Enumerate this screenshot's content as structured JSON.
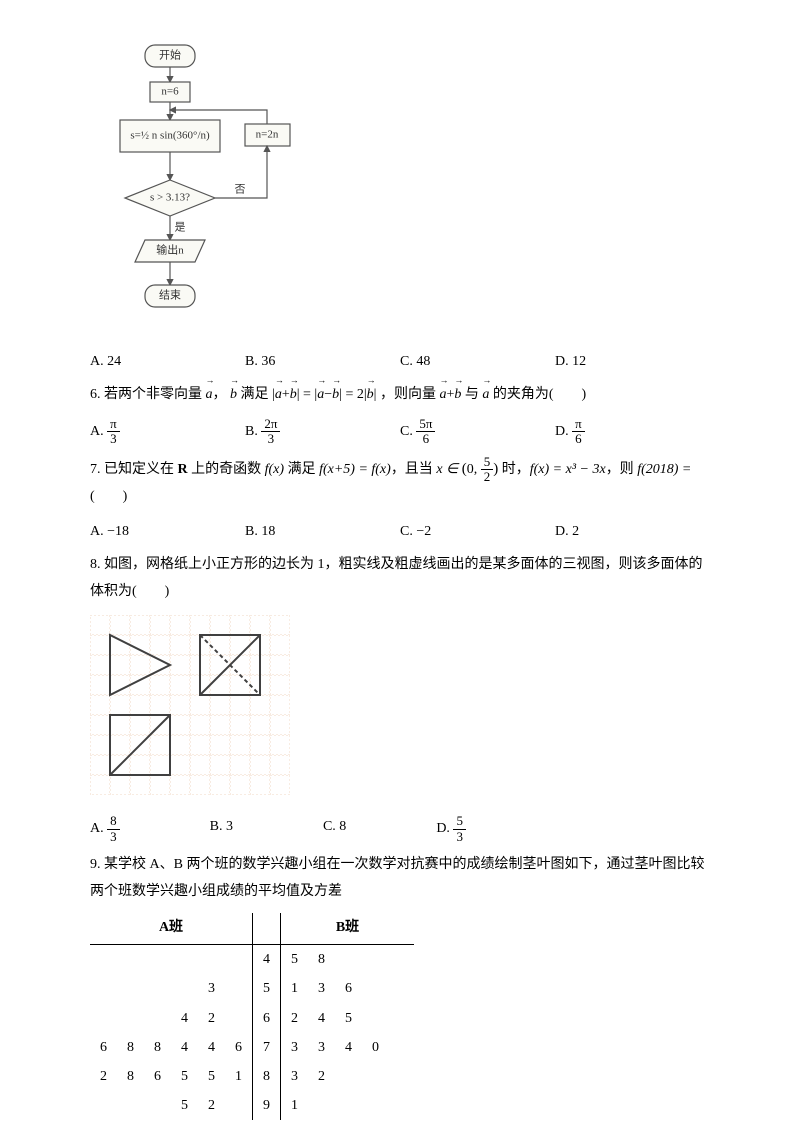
{
  "flowchart": {
    "start": "开始",
    "init": "n=6",
    "formula_prefix": "s=",
    "formula_n": "n",
    "sin": "sin",
    "deg": "360°",
    "update": "n=2n",
    "cond": "s > 3.13?",
    "yes": "是",
    "no": "否",
    "output": "输出n",
    "end": "结束"
  },
  "q5_options": {
    "a": "A. 24",
    "b": "B. 36",
    "c": "C. 48",
    "d": "D. 12"
  },
  "q6": {
    "prefix": "6. 若两个非零向量",
    "a": "a",
    "comma": "，",
    "b": "b",
    "mid1": " 满足",
    "mid2": "，则向量",
    "plus": "+",
    "minus": "−",
    "bar": "|",
    "eq": "=",
    "two": "2",
    "mid3": " 与 ",
    "suffix": " 的夹角为(　　)",
    "opts": {
      "a": "A. ",
      "b": "B. ",
      "c": "C. ",
      "d": "D. "
    },
    "pi": "π",
    "frac_a": {
      "num": "π",
      "den": "3"
    },
    "frac_b": {
      "num": "2π",
      "den": "3"
    },
    "frac_c": {
      "num": "5π",
      "den": "6"
    },
    "frac_d": {
      "num": "π",
      "den": "6"
    }
  },
  "q7": {
    "text1": "7. 已知定义在 ",
    "R": "R",
    "text2": " 上的奇函数 ",
    "fx": "f(x)",
    "text3": " 满足 ",
    "fx5": "f(x+5) = f(x)",
    "text4": "，且当 ",
    "x_in": "x ∈ ",
    "lparen": "(",
    "zero": "0, ",
    "frac_52": {
      "num": "5",
      "den": "2"
    },
    "rparen": ")",
    "text5": " 时，",
    "fx_def": "f(x) = x³ − 3x",
    "text6": "，则 ",
    "f2018": "f(2018) = ",
    "text7": "(　　)",
    "opts": {
      "a": "A. −18",
      "b": "B. 18",
      "c": "C. −2",
      "d": "D. 2"
    }
  },
  "q8": {
    "text": "8. 如图，网格纸上小正方形的边长为 1，粗实线及粗虚线画出的是某多面体的三视图，则该多面体的体积为(　　)",
    "opts": {
      "a": "A. ",
      "b": "B. 3",
      "c": "C. 8",
      "d": "D. "
    },
    "frac_a": {
      "num": "8",
      "den": "3"
    },
    "frac_d": {
      "num": "5",
      "den": "3"
    }
  },
  "q9": {
    "text1": "9. 某学校 A、B 两个班的数学兴趣小组在一次数学对抗赛中的成绩绘制茎叶图如下，通过茎叶图比较两个班数学兴趣小组成绩的平均值及方差",
    "headerA": "A班",
    "headerB": "B班",
    "rows": [
      {
        "a": [
          "",
          "",
          "",
          "",
          ""
        ],
        "stem": "4",
        "b": [
          "5",
          "8",
          "",
          "",
          ""
        ]
      },
      {
        "a": [
          "",
          "",
          "",
          "3",
          ""
        ],
        "stem": "5",
        "b": [
          "1",
          "3",
          "6",
          "",
          ""
        ]
      },
      {
        "a": [
          "",
          "",
          "4",
          "2",
          ""
        ],
        "stem": "6",
        "b": [
          "2",
          "4",
          "5",
          "",
          ""
        ]
      },
      {
        "a": [
          "6",
          "8",
          "8",
          "4",
          "4",
          "6"
        ],
        "stem": "7",
        "b": [
          "3",
          "3",
          "4",
          "0",
          ""
        ]
      },
      {
        "a": [
          "2",
          "8",
          "6",
          "5",
          "5",
          "1"
        ],
        "stem": "8",
        "b": [
          "3",
          "2",
          "",
          "",
          ""
        ]
      },
      {
        "a": [
          "",
          "",
          "",
          "5",
          "2",
          ""
        ],
        "stem": "9",
        "b": [
          "1",
          "",
          "",
          "",
          ""
        ]
      }
    ]
  },
  "colors": {
    "flowchart_bg": "#f5f5f0",
    "flowchart_stroke": "#555555",
    "grid_color": "#d09060",
    "grid_light": "#e8c0a0",
    "shape_stroke": "#404040"
  }
}
